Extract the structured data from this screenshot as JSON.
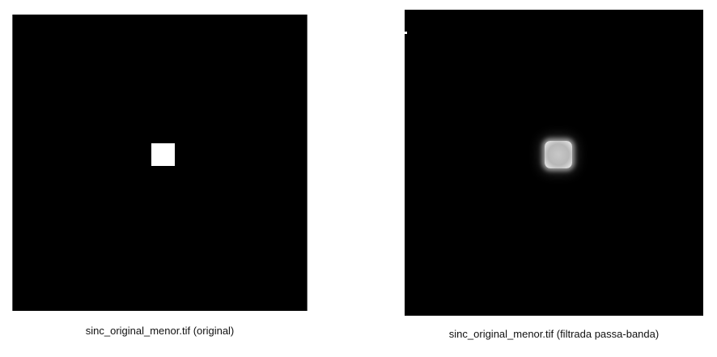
{
  "panels": [
    {
      "caption": "sinc_original_menor.tif (original)",
      "background": "#000000",
      "object": "#ffffff"
    },
    {
      "caption": "sinc_original_menor.tif (filtrada passa-banda)",
      "background": "#000000",
      "object": "#c0c0c0"
    }
  ]
}
